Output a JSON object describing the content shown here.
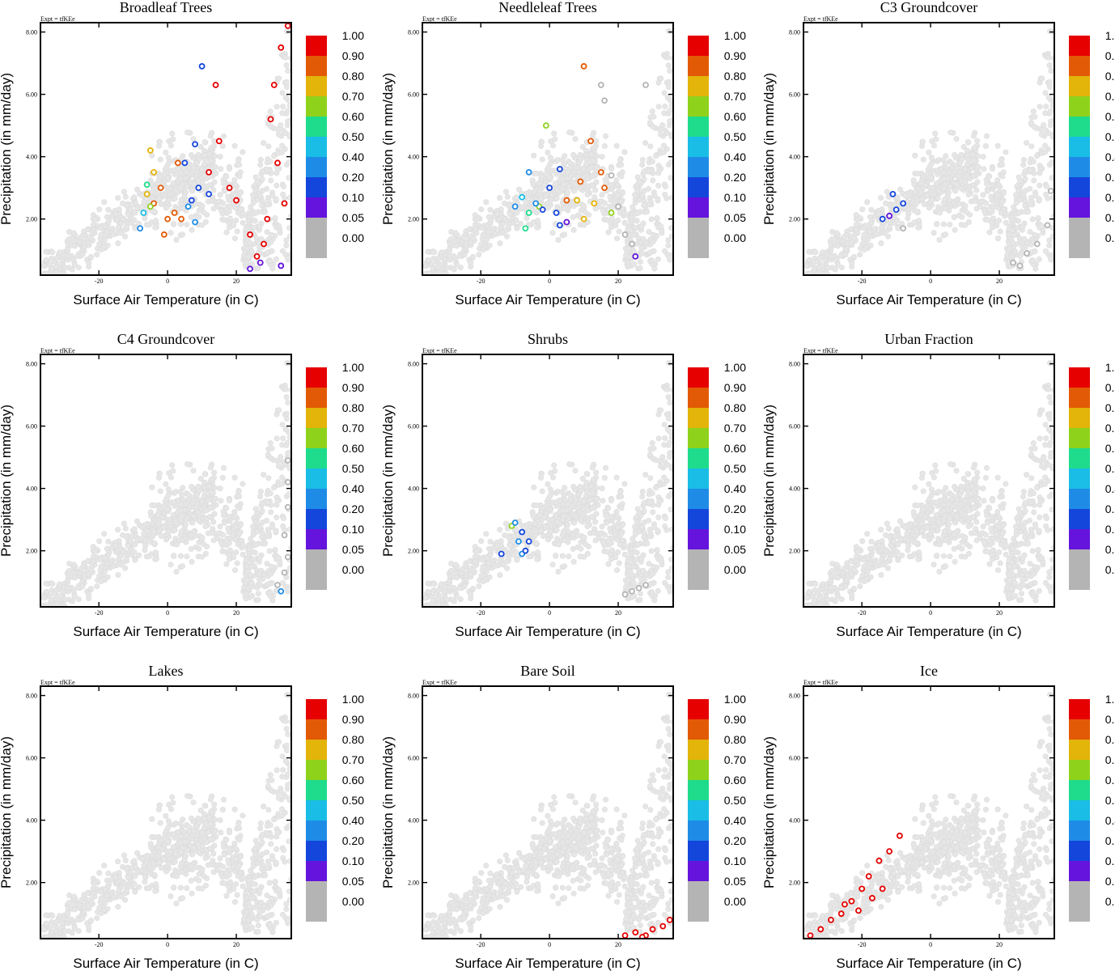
{
  "figure": {
    "expt_label": "Expt = tfKEe",
    "xlabel": "Surface Air Temperature (in C)",
    "ylabel": "Precipitation (in mm/day)",
    "x_ticks": [
      -20,
      0,
      20
    ],
    "x_tick_labels": [
      "-20",
      "0",
      "20"
    ],
    "y_ticks": [
      2,
      4,
      6,
      8
    ],
    "y_tick_labels": [
      "2.00",
      "4.00",
      "6.00",
      "8.00"
    ]
  },
  "colorbar": {
    "levels": [
      {
        "label": "1.00",
        "color": "#e60000"
      },
      {
        "label": "0.90",
        "color": "#e35a06"
      },
      {
        "label": "0.80",
        "color": "#e3b40a"
      },
      {
        "label": "0.70",
        "color": "#8fd21c"
      },
      {
        "label": "0.60",
        "color": "#1edc8c"
      },
      {
        "label": "0.50",
        "color": "#19bde6"
      },
      {
        "label": "0.40",
        "color": "#1e8ce6"
      },
      {
        "label": "0.20",
        "color": "#1446dc"
      },
      {
        "label": "0.10",
        "color": "#6414dc"
      },
      {
        "label": "0.05",
        "color": "#b4b4b4"
      },
      {
        "label": "0.00",
        "color": "#ffffff"
      }
    ]
  },
  "chart_data": [
    {
      "type": "scatter",
      "title": "Broadleaf Trees",
      "xlabel": "Surface Air Temperature (in C)",
      "ylabel": "Precipitation (in mm/day)",
      "xlim": [
        -37,
        36
      ],
      "ylim": [
        0.2,
        8.3
      ],
      "background_color": "#e6e6e6",
      "highlighted": [
        {
          "x": 30,
          "y": 5.2,
          "level": "1.00"
        },
        {
          "x": 32,
          "y": 3.8,
          "level": "1.00"
        },
        {
          "x": 28,
          "y": 1.2,
          "level": "1.00"
        },
        {
          "x": 33,
          "y": 7.5,
          "level": "1.00"
        },
        {
          "x": 26,
          "y": 0.8,
          "level": "1.00"
        },
        {
          "x": 34,
          "y": 2.5,
          "level": "1.00"
        },
        {
          "x": 31,
          "y": 6.3,
          "level": "1.00"
        },
        {
          "x": 12,
          "y": 3.5,
          "level": "1.00"
        },
        {
          "x": 15,
          "y": 4.5,
          "level": "1.00"
        },
        {
          "x": 14,
          "y": 6.3,
          "level": "1.00"
        },
        {
          "x": 18,
          "y": 3.0,
          "level": "1.00"
        },
        {
          "x": 20,
          "y": 2.6,
          "level": "1.00"
        },
        {
          "x": 35,
          "y": 8.2,
          "level": "1.00"
        },
        {
          "x": 24,
          "y": 1.5,
          "level": "1.00"
        },
        {
          "x": 29,
          "y": 2.0,
          "level": "1.00"
        },
        {
          "x": -2,
          "y": 3.0,
          "level": "0.90"
        },
        {
          "x": 2,
          "y": 2.2,
          "level": "0.90"
        },
        {
          "x": -4,
          "y": 2.5,
          "level": "0.90"
        },
        {
          "x": 0,
          "y": 2.0,
          "level": "0.90"
        },
        {
          "x": 3,
          "y": 3.8,
          "level": "0.90"
        },
        {
          "x": -1,
          "y": 1.5,
          "level": "0.90"
        },
        {
          "x": 4,
          "y": 2.0,
          "level": "0.90"
        },
        {
          "x": -5,
          "y": 4.2,
          "level": "0.80"
        },
        {
          "x": -4,
          "y": 3.5,
          "level": "0.80"
        },
        {
          "x": -6,
          "y": 2.8,
          "level": "0.80"
        },
        {
          "x": -5,
          "y": 2.4,
          "level": "0.70"
        },
        {
          "x": -6,
          "y": 3.1,
          "level": "0.60"
        },
        {
          "x": -7,
          "y": 2.2,
          "level": "0.50"
        },
        {
          "x": -8,
          "y": 1.7,
          "level": "0.40"
        },
        {
          "x": 6,
          "y": 2.4,
          "level": "0.40"
        },
        {
          "x": 8,
          "y": 1.9,
          "level": "0.40"
        },
        {
          "x": 5,
          "y": 3.8,
          "level": "0.20"
        },
        {
          "x": 9,
          "y": 3.0,
          "level": "0.20"
        },
        {
          "x": 8,
          "y": 4.4,
          "level": "0.20"
        },
        {
          "x": 12,
          "y": 2.8,
          "level": "0.20"
        },
        {
          "x": 10,
          "y": 6.9,
          "level": "0.20"
        },
        {
          "x": 7,
          "y": 2.6,
          "level": "0.20"
        },
        {
          "x": 24,
          "y": 0.4,
          "level": "0.10"
        },
        {
          "x": 27,
          "y": 0.6,
          "level": "0.10"
        },
        {
          "x": 33,
          "y": 0.5,
          "level": "0.10"
        }
      ]
    },
    {
      "type": "scatter",
      "title": "Needleleaf Trees",
      "xlabel": "Surface Air Temperature (in C)",
      "ylabel": "Precipitation (in mm/day)",
      "xlim": [
        -37,
        36
      ],
      "ylim": [
        0.2,
        8.3
      ],
      "background_color": "#e6e6e6",
      "highlighted": [
        {
          "x": 10,
          "y": 6.9,
          "level": "0.90"
        },
        {
          "x": 12,
          "y": 4.5,
          "level": "0.90"
        },
        {
          "x": 9,
          "y": 3.2,
          "level": "0.90"
        },
        {
          "x": 15,
          "y": 3.5,
          "level": "0.90"
        },
        {
          "x": 5,
          "y": 2.6,
          "level": "0.90"
        },
        {
          "x": 16,
          "y": 3.0,
          "level": "0.90"
        },
        {
          "x": 8,
          "y": 2.6,
          "level": "0.80"
        },
        {
          "x": 10,
          "y": 2.0,
          "level": "0.80"
        },
        {
          "x": 13,
          "y": 2.5,
          "level": "0.80"
        },
        {
          "x": -1,
          "y": 5.0,
          "level": "0.70"
        },
        {
          "x": 18,
          "y": 2.2,
          "level": "0.70"
        },
        {
          "x": -3,
          "y": 2.4,
          "level": "0.70"
        },
        {
          "x": -6,
          "y": 2.2,
          "level": "0.60"
        },
        {
          "x": -7,
          "y": 1.7,
          "level": "0.60"
        },
        {
          "x": -8,
          "y": 2.7,
          "level": "0.50"
        },
        {
          "x": -6,
          "y": 3.5,
          "level": "0.40"
        },
        {
          "x": -4,
          "y": 2.5,
          "level": "0.40"
        },
        {
          "x": -10,
          "y": 2.4,
          "level": "0.40"
        },
        {
          "x": 0,
          "y": 3.0,
          "level": "0.20"
        },
        {
          "x": 2,
          "y": 2.2,
          "level": "0.20"
        },
        {
          "x": -2,
          "y": 2.3,
          "level": "0.20"
        },
        {
          "x": 3,
          "y": 3.6,
          "level": "0.20"
        },
        {
          "x": 3,
          "y": 1.8,
          "level": "0.20"
        },
        {
          "x": 5,
          "y": 1.9,
          "level": "0.10"
        },
        {
          "x": 15,
          "y": 6.3,
          "level": "0.05"
        },
        {
          "x": 18,
          "y": 3.4,
          "level": "0.05"
        },
        {
          "x": 20,
          "y": 2.4,
          "level": "0.05"
        },
        {
          "x": 22,
          "y": 1.5,
          "level": "0.05"
        },
        {
          "x": 24,
          "y": 1.2,
          "level": "0.05"
        },
        {
          "x": 16,
          "y": 5.8,
          "level": "0.05"
        },
        {
          "x": 28,
          "y": 6.3,
          "level": "0.05"
        },
        {
          "x": 25,
          "y": 0.8,
          "level": "0.10"
        }
      ]
    },
    {
      "type": "scatter",
      "title": "C3 Groundcover",
      "xlabel": "Surface Air Temperature (in C)",
      "ylabel": "Precipitation (in mm/day)",
      "xlim": [
        -37,
        36
      ],
      "ylim": [
        0.2,
        8.3
      ],
      "background_color": "#e6e6e6",
      "highlighted": [
        {
          "x": -14,
          "y": 2.0,
          "level": "0.20"
        },
        {
          "x": -11,
          "y": 2.8,
          "level": "0.20"
        },
        {
          "x": -10,
          "y": 2.3,
          "level": "0.20"
        },
        {
          "x": -8,
          "y": 2.5,
          "level": "0.20"
        },
        {
          "x": -12,
          "y": 2.1,
          "level": "0.10"
        },
        {
          "x": -8,
          "y": 1.7,
          "level": "0.05"
        },
        {
          "x": 24,
          "y": 0.6,
          "level": "0.05"
        },
        {
          "x": 28,
          "y": 0.9,
          "level": "0.05"
        },
        {
          "x": 31,
          "y": 1.2,
          "level": "0.05"
        },
        {
          "x": 34,
          "y": 1.8,
          "level": "0.05"
        },
        {
          "x": 35,
          "y": 2.9,
          "level": "0.05"
        },
        {
          "x": 26,
          "y": 0.5,
          "level": "0.05"
        }
      ]
    },
    {
      "type": "scatter",
      "title": "C4 Groundcover",
      "xlabel": "Surface Air Temperature (in C)",
      "ylabel": "Precipitation (in mm/day)",
      "xlim": [
        -37,
        36
      ],
      "ylim": [
        0.2,
        8.3
      ],
      "background_color": "#e6e6e6",
      "highlighted": [
        {
          "x": 35,
          "y": 4.9,
          "level": "0.05"
        },
        {
          "x": 35,
          "y": 4.2,
          "level": "0.05"
        },
        {
          "x": 35,
          "y": 3.4,
          "level": "0.05"
        },
        {
          "x": 34,
          "y": 2.5,
          "level": "0.05"
        },
        {
          "x": 35,
          "y": 1.8,
          "level": "0.05"
        },
        {
          "x": 34,
          "y": 1.3,
          "level": "0.05"
        },
        {
          "x": 32,
          "y": 0.9,
          "level": "0.05"
        },
        {
          "x": 33,
          "y": 0.7,
          "level": "0.40"
        }
      ]
    },
    {
      "type": "scatter",
      "title": "Shrubs",
      "xlabel": "Surface Air Temperature (in C)",
      "ylabel": "Precipitation (in mm/day)",
      "xlim": [
        -37,
        36
      ],
      "ylim": [
        0.2,
        8.3
      ],
      "background_color": "#e6e6e6",
      "highlighted": [
        {
          "x": -11,
          "y": 2.8,
          "level": "0.70"
        },
        {
          "x": -10,
          "y": 2.9,
          "level": "0.40"
        },
        {
          "x": -9,
          "y": 2.3,
          "level": "0.40"
        },
        {
          "x": -8,
          "y": 1.9,
          "level": "0.40"
        },
        {
          "x": -14,
          "y": 1.9,
          "level": "0.20"
        },
        {
          "x": -8,
          "y": 2.6,
          "level": "0.20"
        },
        {
          "x": -6,
          "y": 2.3,
          "level": "0.20"
        },
        {
          "x": -7,
          "y": 2.0,
          "level": "0.20"
        },
        {
          "x": 22,
          "y": 0.6,
          "level": "0.05"
        },
        {
          "x": 24,
          "y": 0.7,
          "level": "0.05"
        },
        {
          "x": 26,
          "y": 0.8,
          "level": "0.05"
        },
        {
          "x": 28,
          "y": 0.9,
          "level": "0.05"
        }
      ]
    },
    {
      "type": "scatter",
      "title": "Urban Fraction",
      "xlabel": "Surface Air Temperature (in C)",
      "ylabel": "Precipitation (in mm/day)",
      "xlim": [
        -37,
        36
      ],
      "ylim": [
        0.2,
        8.3
      ],
      "background_color": "#e6e6e6",
      "highlighted": []
    },
    {
      "type": "scatter",
      "title": "Lakes",
      "xlabel": "Surface Air Temperature (in C)",
      "ylabel": "Precipitation (in mm/day)",
      "xlim": [
        -37,
        36
      ],
      "ylim": [
        0.2,
        8.3
      ],
      "background_color": "#e6e6e6",
      "highlighted": []
    },
    {
      "type": "scatter",
      "title": "Bare Soil",
      "xlabel": "Surface Air Temperature (in C)",
      "ylabel": "Precipitation (in mm/day)",
      "xlim": [
        -37,
        36
      ],
      "ylim": [
        0.2,
        8.3
      ],
      "background_color": "#e6e6e6",
      "highlighted": [
        {
          "x": 22,
          "y": 0.3,
          "level": "1.00"
        },
        {
          "x": 25,
          "y": 0.4,
          "level": "1.00"
        },
        {
          "x": 28,
          "y": 0.3,
          "level": "1.00"
        },
        {
          "x": 30,
          "y": 0.5,
          "level": "1.00"
        },
        {
          "x": 33,
          "y": 0.6,
          "level": "1.00"
        },
        {
          "x": 35,
          "y": 0.8,
          "level": "1.00"
        },
        {
          "x": 27,
          "y": 0.25,
          "level": "1.00"
        }
      ]
    },
    {
      "type": "scatter",
      "title": "Ice",
      "xlabel": "Surface Air Temperature (in C)",
      "ylabel": "Precipitation (in mm/day)",
      "xlim": [
        -37,
        36
      ],
      "ylim": [
        0.2,
        8.3
      ],
      "background_color": "#e6e6e6",
      "highlighted": [
        {
          "x": -35,
          "y": 0.3,
          "level": "1.00"
        },
        {
          "x": -32,
          "y": 0.5,
          "level": "1.00"
        },
        {
          "x": -29,
          "y": 0.8,
          "level": "1.00"
        },
        {
          "x": -26,
          "y": 1.0,
          "level": "1.00"
        },
        {
          "x": -23,
          "y": 1.4,
          "level": "1.00"
        },
        {
          "x": -20,
          "y": 1.8,
          "level": "1.00"
        },
        {
          "x": -18,
          "y": 2.2,
          "level": "1.00"
        },
        {
          "x": -15,
          "y": 2.7,
          "level": "1.00"
        },
        {
          "x": -12,
          "y": 3.0,
          "level": "1.00"
        },
        {
          "x": -9,
          "y": 3.5,
          "level": "1.00"
        },
        {
          "x": -21,
          "y": 1.1,
          "level": "1.00"
        },
        {
          "x": -14,
          "y": 1.8,
          "level": "1.00"
        },
        {
          "x": -17,
          "y": 1.5,
          "level": "1.00"
        },
        {
          "x": -25,
          "y": 1.3,
          "level": "1.00"
        }
      ]
    }
  ]
}
